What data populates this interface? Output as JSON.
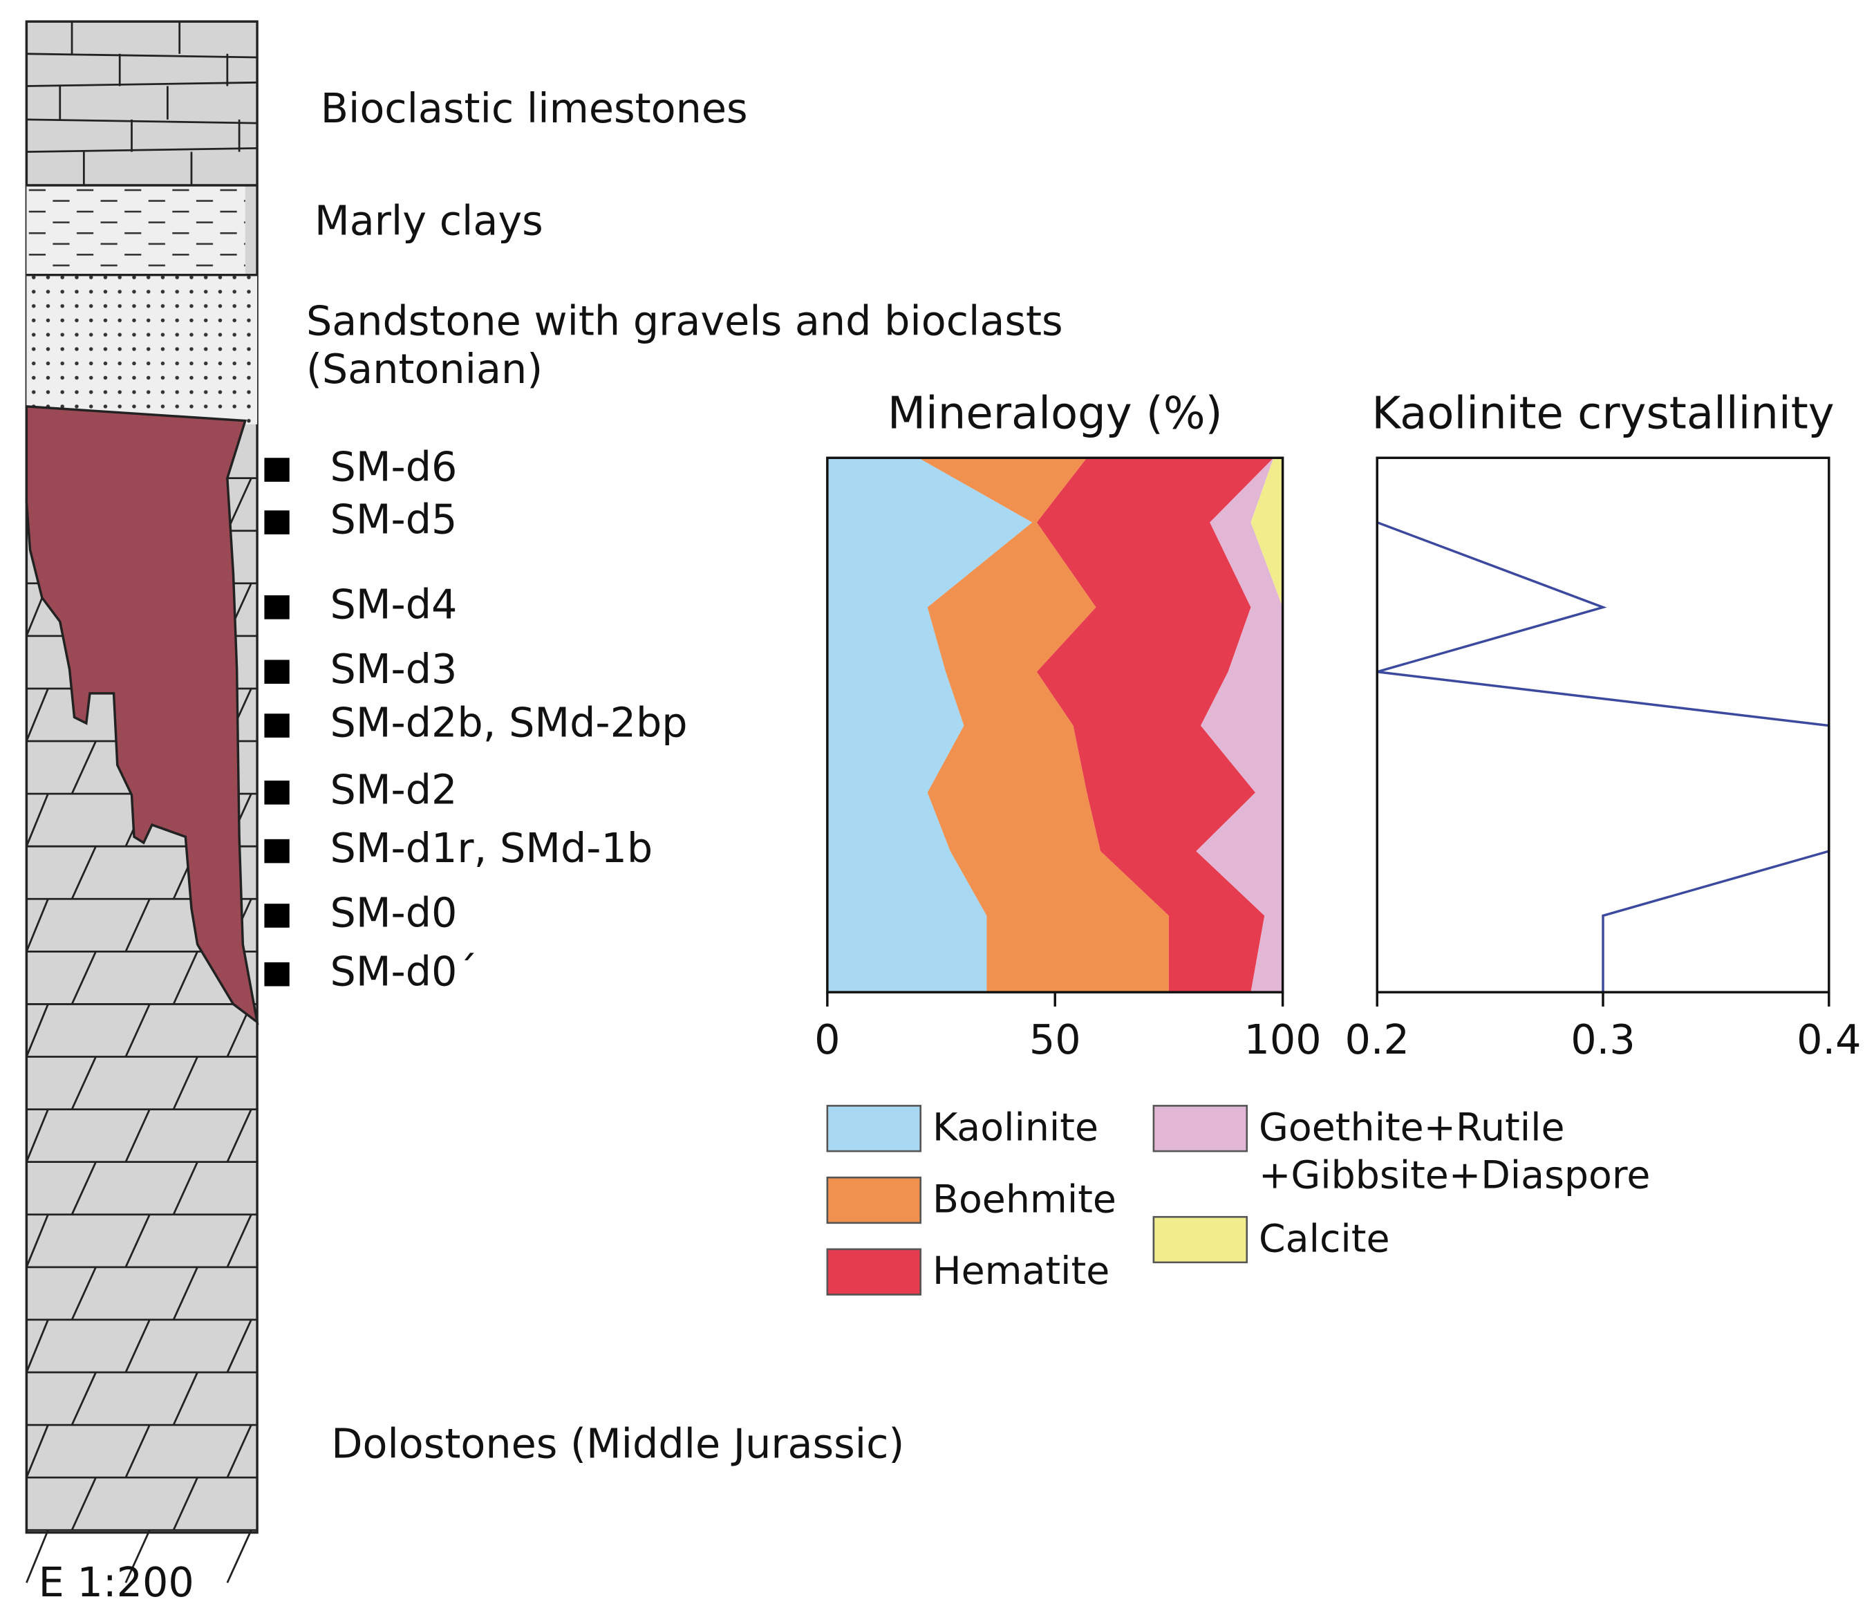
{
  "column": {
    "units": [
      "Bioclastic limestones",
      "Marly clays",
      "Sandstone with gravels and bioclasts",
      "(Santonian)",
      "Dolostones (Middle Jurassic)"
    ],
    "samples": [
      "SM-d6",
      "SM-d5",
      "SM-d4",
      "SM-d3",
      "SM-d2b, SMd-2bp",
      "SM-d2",
      "SM-d1r, SMd-1b",
      "SM-d0",
      "SM-d0´"
    ],
    "scale": "E 1:200"
  },
  "chart_data": [
    {
      "type": "stacked-area",
      "title": "Mineralogy (%)",
      "xlim": [
        0,
        100
      ],
      "xticks": [
        0,
        50,
        100
      ],
      "series": [
        {
          "name": "Kaolinite",
          "color": "#a9d8f2",
          "values": [
            20,
            45,
            22,
            26,
            30,
            22,
            27,
            35,
            35
          ]
        },
        {
          "name": "Boehmite",
          "color": "#f0914f",
          "values": [
            37,
            1,
            37,
            20,
            24,
            35,
            33,
            40,
            40
          ]
        },
        {
          "name": "Hematite",
          "color": "#e63c50",
          "values": [
            41,
            38,
            34,
            42,
            28,
            37,
            21,
            21,
            18
          ]
        },
        {
          "name": "Goethite+Rutile +Gibbsite+Diaspore",
          "color": "#e2b7d6",
          "values": [
            0,
            9,
            7,
            12,
            18,
            6,
            19,
            4,
            7
          ]
        },
        {
          "name": "Calcite",
          "color": "#f1ec8c",
          "values": [
            2,
            7,
            0,
            0,
            0,
            0,
            0,
            0,
            0
          ]
        }
      ]
    },
    {
      "type": "line",
      "title": "Kaolinite crystallinity",
      "xlim": [
        0.2,
        0.4
      ],
      "xticks": [
        0.2,
        0.3,
        0.4
      ],
      "color": "#3b4a9e",
      "values": [
        0.2,
        0.2,
        0.3,
        0.2,
        0.4,
        0.4,
        0.4,
        0.3,
        0.3
      ]
    }
  ]
}
